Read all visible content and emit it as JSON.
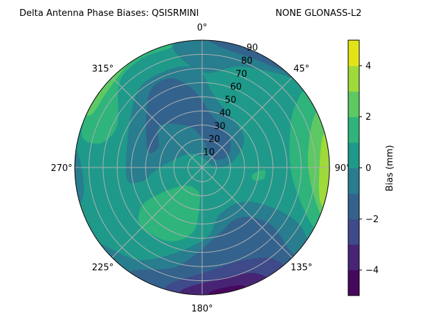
{
  "chart_data": {
    "type": "heatmap",
    "subtype": "polar filled contour",
    "title_left": "Delta Antenna Phase Biases: QSISRMINI",
    "title_right": "NONE GLONASS-L2",
    "angular_ticks": [
      "0°",
      "45°",
      "90°",
      "135°",
      "180°",
      "225°",
      "270°",
      "315°"
    ],
    "angular_tick_values": [
      0,
      45,
      90,
      135,
      180,
      225,
      270,
      315
    ],
    "radial_ticks": [
      "10",
      "20",
      "30",
      "40",
      "50",
      "60",
      "70",
      "80",
      "90"
    ],
    "radial_tick_values": [
      10,
      20,
      30,
      40,
      50,
      60,
      70,
      80,
      90
    ],
    "radial_range": [
      0,
      90
    ],
    "grid": true,
    "colorbar": {
      "label": "Bias (mm)",
      "levels": [
        -5,
        -4,
        -3,
        -2,
        -1,
        0,
        1,
        2,
        3,
        4,
        5
      ],
      "tick_labels": [
        "−4",
        "−2",
        "0",
        "2",
        "4"
      ],
      "tick_values": [
        -4,
        -2,
        0,
        2,
        4
      ],
      "colors": [
        "#46085c",
        "#482475",
        "#3e4a89",
        "#33638d",
        "#287d8e",
        "#1f9a8a",
        "#2fb47c",
        "#5ec962",
        "#9fda3a",
        "#e2e418"
      ],
      "colormap": "viridis"
    },
    "background_level": [
      0,
      1
    ],
    "regions": [
      {
        "level": [
          -1,
          0
        ],
        "points": [
          [
            265,
            54
          ],
          [
            317,
            69
          ],
          [
            339,
            73
          ],
          [
            357,
            70
          ],
          [
            11,
            50
          ],
          [
            52,
            37
          ],
          [
            77,
            23
          ],
          [
            89,
            10
          ],
          [
            326,
            12
          ],
          [
            270,
            30
          ],
          [
            257,
            44
          ]
        ]
      },
      {
        "level": [
          -1,
          0
        ],
        "points": [
          [
            347,
            89
          ],
          [
            6,
            91
          ],
          [
            37,
            92
          ],
          [
            49,
            92
          ],
          [
            40,
            86
          ],
          [
            20,
            76
          ],
          [
            4,
            67
          ],
          [
            352,
            74
          ]
        ]
      },
      {
        "level": [
          -2,
          -1
        ],
        "points": [
          [
            289,
            41
          ],
          [
            324,
            64
          ],
          [
            340,
            67
          ],
          [
            353,
            56
          ],
          [
            10,
            38
          ],
          [
            42,
            29
          ],
          [
            65,
            20
          ],
          [
            50,
            10
          ],
          [
            0,
            21
          ],
          [
            341,
            31
          ],
          [
            315,
            42
          ],
          [
            295,
            34
          ]
        ]
      },
      {
        "level": [
          -2,
          -1
        ],
        "points": [
          [
            3,
            91
          ],
          [
            23,
            92
          ],
          [
            40,
            90
          ],
          [
            25,
            85
          ],
          [
            9,
            86
          ]
        ]
      },
      {
        "level": [
          -1,
          0
        ],
        "points": [
          [
            278,
            92
          ],
          [
            270,
            85
          ],
          [
            257,
            86
          ],
          [
            254,
            92
          ],
          [
            262,
            100
          ]
        ]
      },
      {
        "level": [
          -1,
          0
        ],
        "points": [
          [
            236,
            94
          ],
          [
            213,
            78
          ],
          [
            180,
            52
          ],
          [
            158,
            35
          ],
          [
            127,
            40
          ],
          [
            119,
            67
          ],
          [
            123,
            87
          ],
          [
            135,
            101
          ],
          [
            180,
            96
          ],
          [
            232,
            115
          ]
        ]
      },
      {
        "level": [
          -2,
          -1
        ],
        "points": [
          [
            214,
            90
          ],
          [
            194,
            72
          ],
          [
            169,
            50
          ],
          [
            144,
            44
          ],
          [
            130,
            61
          ],
          [
            133,
            82
          ],
          [
            138,
            100
          ],
          [
            180,
            96
          ]
        ]
      },
      {
        "level": [
          -3,
          -2
        ],
        "points": [
          [
            197,
            89
          ],
          [
            175,
            73
          ],
          [
            155,
            72
          ],
          [
            142,
            82
          ],
          [
            144,
            94
          ],
          [
            180,
            100
          ]
        ]
      },
      {
        "level": [
          -4,
          -3
        ],
        "points": [
          [
            190,
            89
          ],
          [
            173,
            80
          ],
          [
            154,
            83
          ],
          [
            151,
            95
          ],
          [
            180,
            98
          ]
        ]
      },
      {
        "level": [
          -5,
          -4
        ],
        "points": [
          [
            176,
            88
          ],
          [
            161,
            88
          ],
          [
            162,
            96
          ],
          [
            176,
            96
          ]
        ]
      },
      {
        "level": [
          1,
          2
        ],
        "points": [
          [
            234,
            55
          ],
          [
            239,
            44
          ],
          [
            229,
            20
          ],
          [
            192,
            16.5
          ],
          [
            184,
            26
          ],
          [
            188,
            46
          ],
          [
            204,
            57
          ],
          [
            225,
            60
          ]
        ]
      },
      {
        "level": [
          1,
          2
        ],
        "points": [
          [
            57,
            78
          ],
          [
            56,
            92
          ],
          [
            96,
            93
          ],
          [
            118,
            100
          ],
          [
            117,
            86
          ],
          [
            96,
            64
          ],
          [
            70,
            66
          ]
        ]
      },
      {
        "level": [
          2,
          3
        ],
        "points": [
          [
            67,
            85
          ],
          [
            66,
            96
          ],
          [
            113,
            99
          ],
          [
            111,
            89
          ],
          [
            90,
            75
          ]
        ]
      },
      {
        "level": [
          3,
          4
        ],
        "points": [
          [
            77,
            87
          ],
          [
            76,
            95
          ],
          [
            106,
            96
          ],
          [
            105,
            86
          ]
        ]
      },
      {
        "level": [
          1,
          2
        ],
        "points": [
          [
            98,
            36
          ],
          [
            92,
            44
          ],
          [
            100,
            44.5
          ],
          [
            104,
            38
          ]
        ]
      },
      {
        "level": [
          1,
          2
        ],
        "points": [
          [
            287,
            89
          ],
          [
            315,
            95
          ],
          [
            337,
            97
          ],
          [
            346,
            88
          ],
          [
            331,
            88
          ],
          [
            316,
            84
          ],
          [
            296,
            67
          ],
          [
            283,
            75
          ]
        ]
      },
      {
        "level": [
          2,
          3
        ],
        "points": [
          [
            295,
            90
          ],
          [
            306,
            93
          ],
          [
            333,
            93
          ],
          [
            339,
            95
          ],
          [
            325,
            90
          ],
          [
            309,
            86
          ],
          [
            297,
            86
          ]
        ]
      },
      {
        "level": [
          3,
          4
        ],
        "points": [
          [
            303,
            92
          ],
          [
            312,
            90
          ],
          [
            322,
            91
          ],
          [
            333,
            96
          ],
          [
            320,
            100
          ],
          [
            305,
            100
          ]
        ]
      }
    ]
  }
}
